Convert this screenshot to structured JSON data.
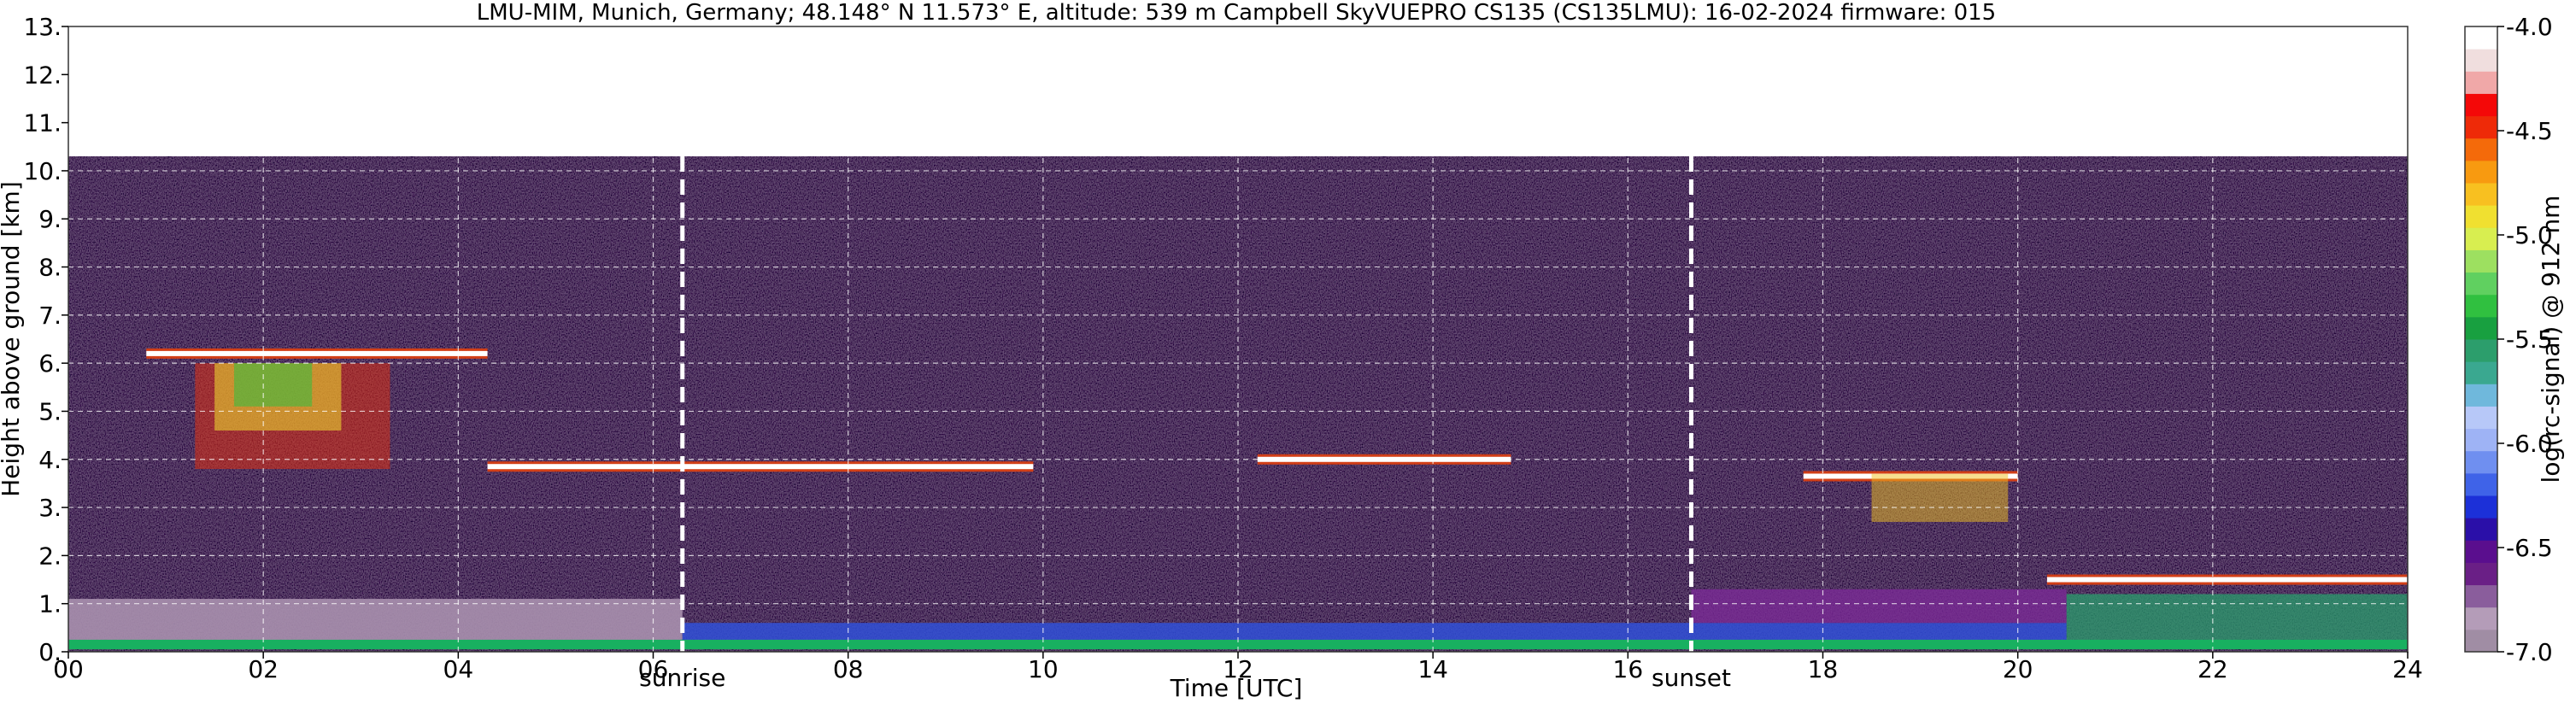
{
  "chart_data": {
    "type": "heatmap",
    "title": "LMU-MIM, Munich, Germany; 48.148° N 11.573° E, altitude: 539 m    Campbell SkyVUEPRO CS135 (CS135LMU): 16-02-2024    firmware: 015",
    "xlabel": "Time [UTC]",
    "ylabel": "Height above ground [km]",
    "colorbar_label": "log(rc-signal) @ 912 nm",
    "xlim": [
      0,
      24
    ],
    "ylim": [
      0,
      13
    ],
    "data_top_km": 10.3,
    "x_ticks": [
      "00",
      "02",
      "04",
      "06",
      "08",
      "10",
      "12",
      "14",
      "16",
      "18",
      "20",
      "22",
      "24"
    ],
    "y_ticks": [
      "0.",
      "1.",
      "2.",
      "3.",
      "4.",
      "5.",
      "6.",
      "7.",
      "8.",
      "9.",
      "10.",
      "11.",
      "12.",
      "13."
    ],
    "colorbar_ticks": [
      "-4.0",
      "-4.5",
      "-5.0",
      "-5.5",
      "-6.0",
      "-6.5",
      "-7.0"
    ],
    "colorbar_range": [
      -7.0,
      -4.0
    ],
    "grid": true,
    "markers": [
      {
        "label": "sunrise",
        "time": 6.3
      },
      {
        "label": "sunset",
        "time": 16.65
      }
    ],
    "cloud_layers": [
      {
        "start": 0.8,
        "end": 4.3,
        "height_km": 6.2
      },
      {
        "start": 4.3,
        "end": 9.9,
        "height_km": 3.85
      },
      {
        "start": 12.2,
        "end": 14.8,
        "height_km": 4.0
      },
      {
        "start": 17.8,
        "end": 20.0,
        "height_km": 3.65
      },
      {
        "start": 20.3,
        "end": 24.0,
        "height_km": 1.5
      }
    ],
    "colorbar_colors": [
      "#a08da4",
      "#b49cb8",
      "#8a5d9c",
      "#6a1f86",
      "#5a0e8e",
      "#2a0fa8",
      "#1c30d8",
      "#3f63e8",
      "#6f8ff0",
      "#9eb3f5",
      "#b7c8f8",
      "#6fb8dc",
      "#3aa890",
      "#2c9e6c",
      "#18a040",
      "#30c040",
      "#60d060",
      "#9de060",
      "#d8ee50",
      "#f0e030",
      "#f8c020",
      "#f89a10",
      "#f46a0a",
      "#ee2a08",
      "#f40808",
      "#f0a8a8",
      "#f0dede",
      "#ffffff"
    ]
  }
}
